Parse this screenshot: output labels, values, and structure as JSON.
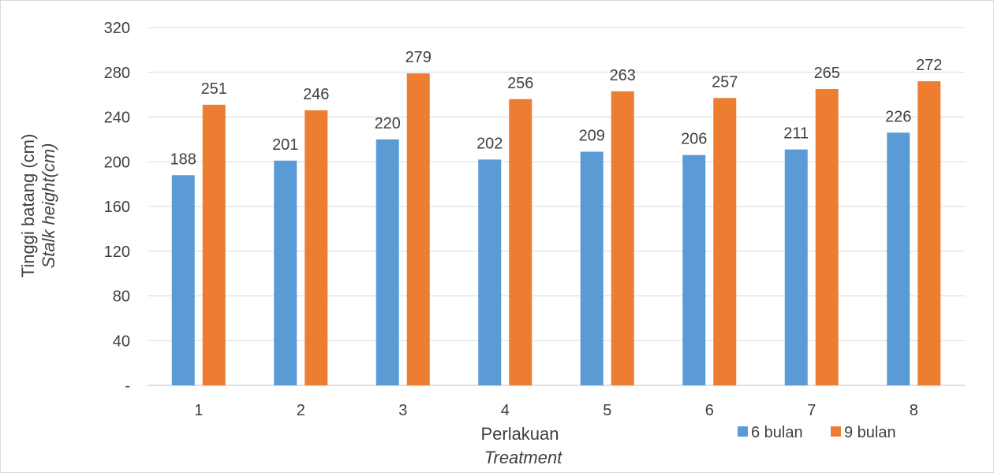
{
  "chart_data": {
    "type": "bar",
    "categories": [
      "1",
      "2",
      "3",
      "4",
      "5",
      "6",
      "7",
      "8"
    ],
    "series": [
      {
        "name": "6 bulan",
        "color": "#5b9bd5",
        "values": [
          188,
          201,
          220,
          202,
          209,
          206,
          211,
          226
        ]
      },
      {
        "name": "9 bulan",
        "color": "#ed7d31",
        "values": [
          251,
          246,
          279,
          256,
          263,
          257,
          265,
          272
        ]
      }
    ],
    "ylabel": "Tinggi batang (cm)",
    "ylabel_italic": "Stalk height(cm)",
    "xlabel": "Perlakuan",
    "xlabel_italic": "Treatment",
    "ylim": [
      0,
      320
    ],
    "yticks": [
      0,
      40,
      80,
      120,
      160,
      200,
      240,
      280,
      320
    ],
    "ytick_labels": [
      "-",
      "40",
      "80",
      "120",
      "160",
      "200",
      "240",
      "280",
      "320"
    ],
    "grid": true,
    "legend_position": "bottom-right"
  }
}
